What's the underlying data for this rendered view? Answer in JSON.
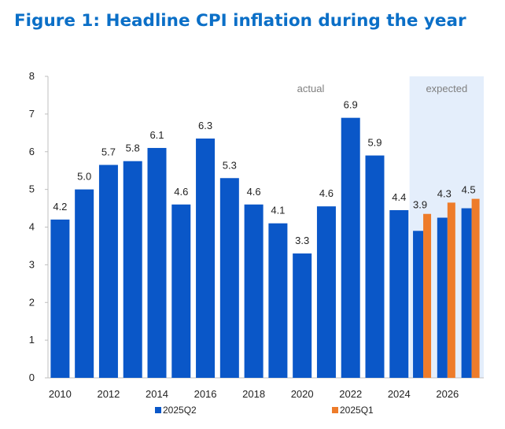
{
  "colors": {
    "title": "#0b6fc7",
    "series_q2": "#0a57c8",
    "series_q1": "#ee7c2a",
    "expected_band": "#e4eefb",
    "axis": "#bfbfbf",
    "label": "#222222",
    "region_label": "#7f7f7f"
  },
  "chart_data": {
    "type": "bar",
    "title": "Figure 1: Headline CPI inflation during the year",
    "categories": [
      "2010",
      "2011",
      "2012",
      "2013",
      "2014",
      "2015",
      "2016",
      "2017",
      "2018",
      "2019",
      "2020",
      "2021",
      "2022",
      "2023",
      "2024",
      "2025",
      "2026",
      "2027"
    ],
    "x_tick_labels": [
      "2010",
      "2012",
      "2014",
      "2016",
      "2018",
      "2020",
      "2022",
      "2024",
      "2026"
    ],
    "series": [
      {
        "name": "2025Q2",
        "values": [
          4.2,
          5.0,
          5.65,
          5.75,
          6.1,
          4.6,
          6.35,
          5.3,
          4.6,
          4.1,
          3.3,
          4.55,
          6.9,
          5.9,
          4.45,
          3.9,
          4.25,
          4.5
        ]
      },
      {
        "name": "2025Q1",
        "values": [
          null,
          null,
          null,
          null,
          null,
          null,
          null,
          null,
          null,
          null,
          null,
          null,
          null,
          null,
          null,
          4.35,
          4.65,
          4.75
        ]
      }
    ],
    "data_labels": [
      "4.2",
      "5.0",
      "5.7",
      "5.8",
      "6.1",
      "4.6",
      "6.3",
      "5.3",
      "4.6",
      "4.1",
      "3.3",
      "4.6",
      "6.9",
      "5.9",
      "4.4",
      "3.9",
      "4.3",
      "4.5"
    ],
    "ylim": [
      0,
      8
    ],
    "yticks": [
      0,
      1,
      2,
      3,
      4,
      5,
      6,
      7,
      8
    ],
    "xlabel": "",
    "ylabel": "",
    "grid": false,
    "legend_position": "bottom",
    "regions": [
      {
        "label": "actual"
      },
      {
        "label": "expected"
      }
    ],
    "expected_start_category": "2025"
  }
}
